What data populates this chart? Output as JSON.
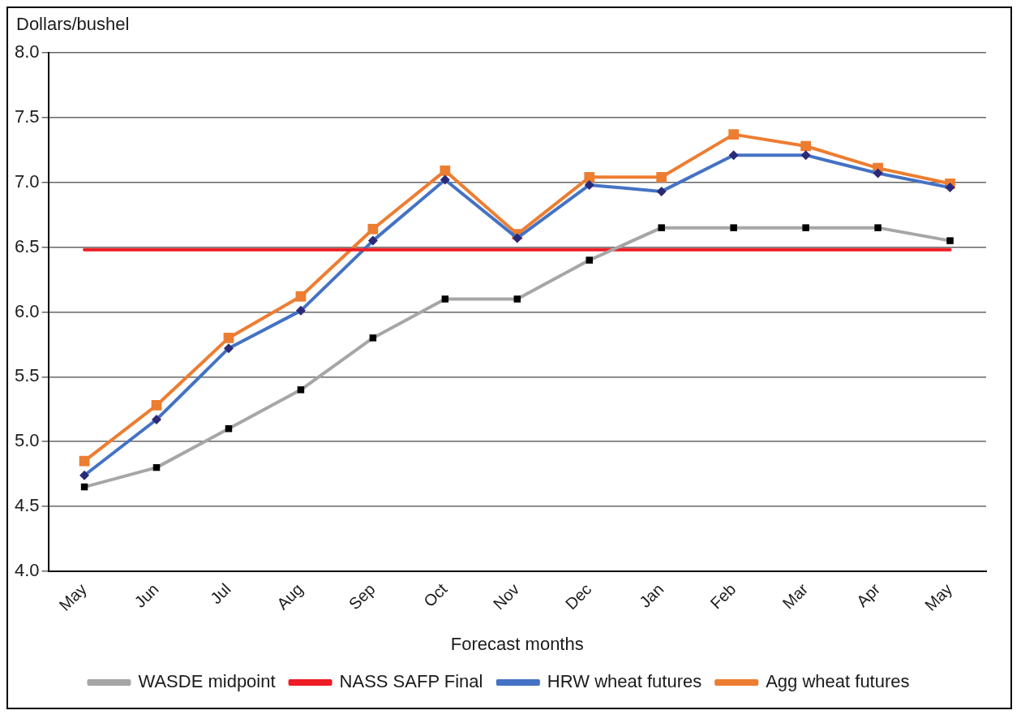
{
  "chart_data": {
    "type": "line",
    "ylabel": "Dollars/bushel",
    "xlabel": "Forecast months",
    "categories": [
      "May",
      "Jun",
      "Jul",
      "Aug",
      "Sep",
      "Oct",
      "Nov",
      "Dec",
      "Jan",
      "Feb",
      "Mar",
      "Apr",
      "May"
    ],
    "series": [
      {
        "name": "WASDE midpoint",
        "color": "#a6a6a6",
        "marker": "square",
        "values": [
          4.65,
          4.8,
          5.1,
          5.4,
          5.8,
          6.1,
          6.1,
          6.4,
          6.65,
          6.65,
          6.65,
          6.65,
          6.55
        ]
      },
      {
        "name": "NASS SAFP Final",
        "color": "#ed1c24",
        "marker": "none",
        "values": [
          6.48,
          6.48,
          6.48,
          6.48,
          6.48,
          6.48,
          6.48,
          6.48,
          6.48,
          6.48,
          6.48,
          6.48,
          6.48
        ]
      },
      {
        "name": "HRW wheat futures",
        "color": "#4472c4",
        "marker": "diamond",
        "values": [
          4.74,
          5.17,
          5.72,
          6.01,
          6.55,
          7.02,
          6.57,
          6.98,
          6.93,
          7.21,
          7.21,
          7.07,
          6.96
        ]
      },
      {
        "name": "Agg wheat futures",
        "color": "#ed7d31",
        "marker": "square",
        "values": [
          4.85,
          5.28,
          5.8,
          6.12,
          6.64,
          7.09,
          6.6,
          7.04,
          7.04,
          7.37,
          7.28,
          7.11,
          6.99
        ]
      }
    ],
    "ylim": [
      4.0,
      8.0
    ],
    "yticks": [
      {
        "value": 4,
        "label": "4.0"
      },
      {
        "value": 4.5,
        "label": "4.5"
      },
      {
        "value": 5,
        "label": "5.0"
      },
      {
        "value": 5.5,
        "label": "5.5"
      },
      {
        "value": 6,
        "label": "6.0"
      },
      {
        "value": 6.5,
        "label": "6.5"
      },
      {
        "value": 7,
        "label": "7.0"
      },
      {
        "value": 7.5,
        "label": "7.5"
      },
      {
        "value": 8,
        "label": "8.0"
      }
    ],
    "grid": "y",
    "legend": "bottom"
  }
}
